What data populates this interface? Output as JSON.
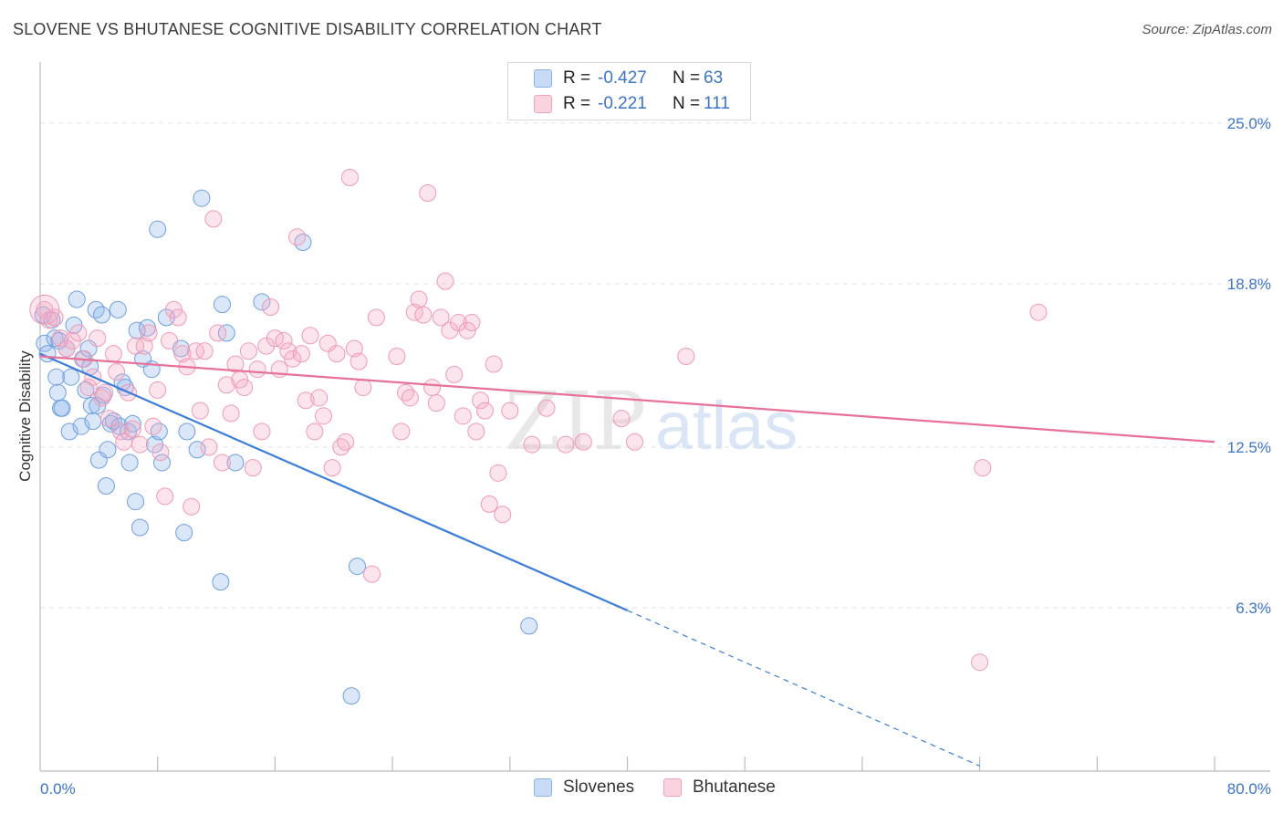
{
  "title": "SLOVENE VS BHUTANESE COGNITIVE DISABILITY CORRELATION CHART",
  "source": "Source: ZipAtlas.com",
  "watermark": "ZIPatlas",
  "legend_top": [
    {
      "r_label": "R =",
      "r_value": "-0.427",
      "n_label": "N =",
      "n_value": "63",
      "color": "#a9c6f0"
    },
    {
      "r_label": "R =",
      "r_value": "-0.221",
      "n_label": "N =",
      "n_value": "111",
      "color": "#f5b8cb"
    }
  ],
  "legend_bottom": [
    {
      "label": "Slovenes",
      "color": "#a9c6f0"
    },
    {
      "label": "Bhutanese",
      "color": "#f5b8cb"
    }
  ],
  "chart_data": {
    "type": "scatter",
    "title": "SLOVENE VS BHUTANESE COGNITIVE DISABILITY CORRELATION CHART",
    "xlabel": "",
    "ylabel": "Cognitive Disability",
    "xlim": [
      0,
      80
    ],
    "ylim": [
      0,
      27
    ],
    "x_tick_labels": [
      "0.0%",
      "80.0%"
    ],
    "y_ticks": [
      6.3,
      12.5,
      18.8,
      25.0
    ],
    "y_tick_labels": [
      "6.3%",
      "12.5%",
      "18.8%",
      "25.0%"
    ],
    "grid": "horizontal dashed",
    "legend_position": "top-center",
    "colors": {
      "slovenes": "#3b7dd8",
      "bhutanese": "#e8719b",
      "tick_label": "#3b74c9"
    },
    "series": [
      {
        "name": "Slovenes",
        "r": -0.427,
        "n": 63,
        "trend": {
          "x": [
            0,
            40
          ],
          "y": [
            16.1,
            6.2
          ],
          "dashed_extension_to": [
            64,
            0.2
          ]
        },
        "points": [
          [
            0.2,
            17.6
          ],
          [
            0.3,
            16.5
          ],
          [
            0.5,
            16.1
          ],
          [
            0.8,
            17.4
          ],
          [
            1.0,
            16.7
          ],
          [
            1.1,
            15.2
          ],
          [
            1.2,
            14.6
          ],
          [
            1.3,
            16.6
          ],
          [
            1.4,
            14.0
          ],
          [
            1.5,
            14.0
          ],
          [
            1.8,
            16.3
          ],
          [
            2.0,
            13.1
          ],
          [
            2.1,
            15.2
          ],
          [
            2.3,
            17.2
          ],
          [
            2.5,
            18.2
          ],
          [
            2.8,
            13.3
          ],
          [
            2.9,
            15.9
          ],
          [
            3.1,
            14.7
          ],
          [
            3.3,
            16.3
          ],
          [
            3.4,
            15.6
          ],
          [
            3.5,
            14.1
          ],
          [
            3.6,
            13.5
          ],
          [
            3.8,
            17.8
          ],
          [
            3.9,
            14.1
          ],
          [
            4.0,
            12.0
          ],
          [
            4.2,
            17.6
          ],
          [
            4.3,
            14.5
          ],
          [
            4.5,
            11.0
          ],
          [
            4.6,
            12.4
          ],
          [
            4.8,
            13.4
          ],
          [
            5.0,
            13.5
          ],
          [
            5.3,
            17.8
          ],
          [
            5.4,
            13.3
          ],
          [
            5.6,
            15.0
          ],
          [
            5.8,
            14.8
          ],
          [
            6.0,
            13.1
          ],
          [
            6.1,
            11.9
          ],
          [
            6.3,
            13.4
          ],
          [
            6.5,
            10.4
          ],
          [
            6.6,
            17.0
          ],
          [
            6.8,
            9.4
          ],
          [
            7.0,
            15.9
          ],
          [
            7.3,
            17.1
          ],
          [
            7.6,
            15.5
          ],
          [
            7.8,
            12.6
          ],
          [
            8.0,
            20.9
          ],
          [
            8.1,
            13.1
          ],
          [
            8.3,
            11.9
          ],
          [
            8.6,
            17.5
          ],
          [
            9.6,
            16.3
          ],
          [
            9.8,
            9.2
          ],
          [
            10.0,
            13.1
          ],
          [
            10.7,
            12.4
          ],
          [
            11.0,
            22.1
          ],
          [
            12.3,
            7.3
          ],
          [
            12.4,
            18.0
          ],
          [
            12.7,
            16.9
          ],
          [
            13.3,
            11.9
          ],
          [
            15.1,
            18.1
          ],
          [
            17.9,
            20.4
          ],
          [
            21.6,
            7.9
          ],
          [
            33.3,
            5.6
          ],
          [
            21.2,
            2.9
          ]
        ]
      },
      {
        "name": "Bhutanese",
        "r": -0.221,
        "n": 111,
        "trend": {
          "x": [
            0,
            80
          ],
          "y": [
            16.0,
            12.7
          ]
        },
        "points": [
          [
            0.3,
            17.8
          ],
          [
            0.6,
            17.4
          ],
          [
            1.0,
            17.5
          ],
          [
            1.4,
            16.7
          ],
          [
            1.8,
            16.3
          ],
          [
            2.2,
            16.6
          ],
          [
            2.6,
            16.9
          ],
          [
            3.0,
            15.9
          ],
          [
            3.3,
            14.8
          ],
          [
            3.6,
            15.2
          ],
          [
            3.9,
            16.7
          ],
          [
            4.2,
            14.4
          ],
          [
            4.4,
            14.6
          ],
          [
            4.7,
            13.6
          ],
          [
            5.0,
            16.1
          ],
          [
            5.2,
            15.4
          ],
          [
            5.5,
            13.1
          ],
          [
            5.7,
            12.7
          ],
          [
            6.0,
            14.6
          ],
          [
            6.3,
            13.2
          ],
          [
            6.5,
            16.4
          ],
          [
            6.8,
            12.6
          ],
          [
            7.1,
            16.4
          ],
          [
            7.4,
            16.9
          ],
          [
            7.7,
            13.3
          ],
          [
            8.0,
            14.7
          ],
          [
            8.2,
            12.3
          ],
          [
            8.5,
            10.6
          ],
          [
            8.8,
            16.6
          ],
          [
            9.1,
            17.8
          ],
          [
            9.4,
            17.5
          ],
          [
            9.7,
            16.1
          ],
          [
            10.0,
            15.6
          ],
          [
            10.3,
            10.2
          ],
          [
            10.6,
            16.2
          ],
          [
            10.9,
            13.9
          ],
          [
            11.2,
            16.2
          ],
          [
            11.5,
            12.5
          ],
          [
            11.8,
            21.3
          ],
          [
            12.1,
            16.9
          ],
          [
            12.4,
            11.9
          ],
          [
            12.7,
            14.9
          ],
          [
            13.0,
            13.8
          ],
          [
            13.3,
            15.7
          ],
          [
            13.6,
            15.1
          ],
          [
            13.9,
            14.8
          ],
          [
            14.2,
            16.2
          ],
          [
            14.5,
            11.7
          ],
          [
            14.8,
            15.5
          ],
          [
            15.1,
            13.1
          ],
          [
            15.4,
            16.4
          ],
          [
            15.7,
            17.9
          ],
          [
            16.0,
            16.7
          ],
          [
            16.3,
            15.5
          ],
          [
            16.6,
            16.6
          ],
          [
            16.9,
            16.2
          ],
          [
            17.2,
            15.9
          ],
          [
            17.5,
            20.6
          ],
          [
            17.8,
            16.1
          ],
          [
            18.1,
            14.3
          ],
          [
            18.4,
            16.8
          ],
          [
            18.7,
            13.1
          ],
          [
            19.0,
            14.4
          ],
          [
            19.3,
            13.7
          ],
          [
            19.6,
            16.5
          ],
          [
            19.9,
            11.7
          ],
          [
            20.2,
            16.1
          ],
          [
            20.5,
            12.5
          ],
          [
            20.8,
            12.7
          ],
          [
            21.1,
            22.9
          ],
          [
            21.4,
            16.3
          ],
          [
            21.7,
            15.8
          ],
          [
            22.0,
            14.8
          ],
          [
            22.6,
            7.6
          ],
          [
            22.9,
            17.5
          ],
          [
            24.3,
            16.0
          ],
          [
            24.6,
            13.1
          ],
          [
            24.9,
            14.6
          ],
          [
            25.2,
            14.4
          ],
          [
            25.5,
            17.7
          ],
          [
            25.8,
            18.2
          ],
          [
            26.1,
            17.6
          ],
          [
            26.4,
            22.3
          ],
          [
            26.7,
            14.8
          ],
          [
            27.0,
            14.2
          ],
          [
            27.3,
            17.5
          ],
          [
            27.6,
            18.9
          ],
          [
            27.9,
            17.0
          ],
          [
            28.2,
            15.3
          ],
          [
            28.5,
            17.3
          ],
          [
            28.8,
            13.7
          ],
          [
            29.1,
            17.0
          ],
          [
            29.4,
            17.3
          ],
          [
            29.7,
            13.1
          ],
          [
            30.0,
            14.3
          ],
          [
            30.3,
            13.9
          ],
          [
            30.6,
            10.3
          ],
          [
            30.9,
            15.7
          ],
          [
            31.2,
            11.5
          ],
          [
            31.5,
            9.9
          ],
          [
            32.0,
            13.9
          ],
          [
            33.5,
            12.6
          ],
          [
            37.0,
            12.7
          ],
          [
            39.6,
            13.6
          ],
          [
            44.0,
            16.0
          ],
          [
            64.0,
            4.2
          ],
          [
            64.2,
            11.7
          ],
          [
            68.0,
            17.7
          ],
          [
            35.8,
            12.6
          ],
          [
            40.5,
            12.7
          ],
          [
            34.5,
            14.0
          ]
        ]
      }
    ]
  }
}
